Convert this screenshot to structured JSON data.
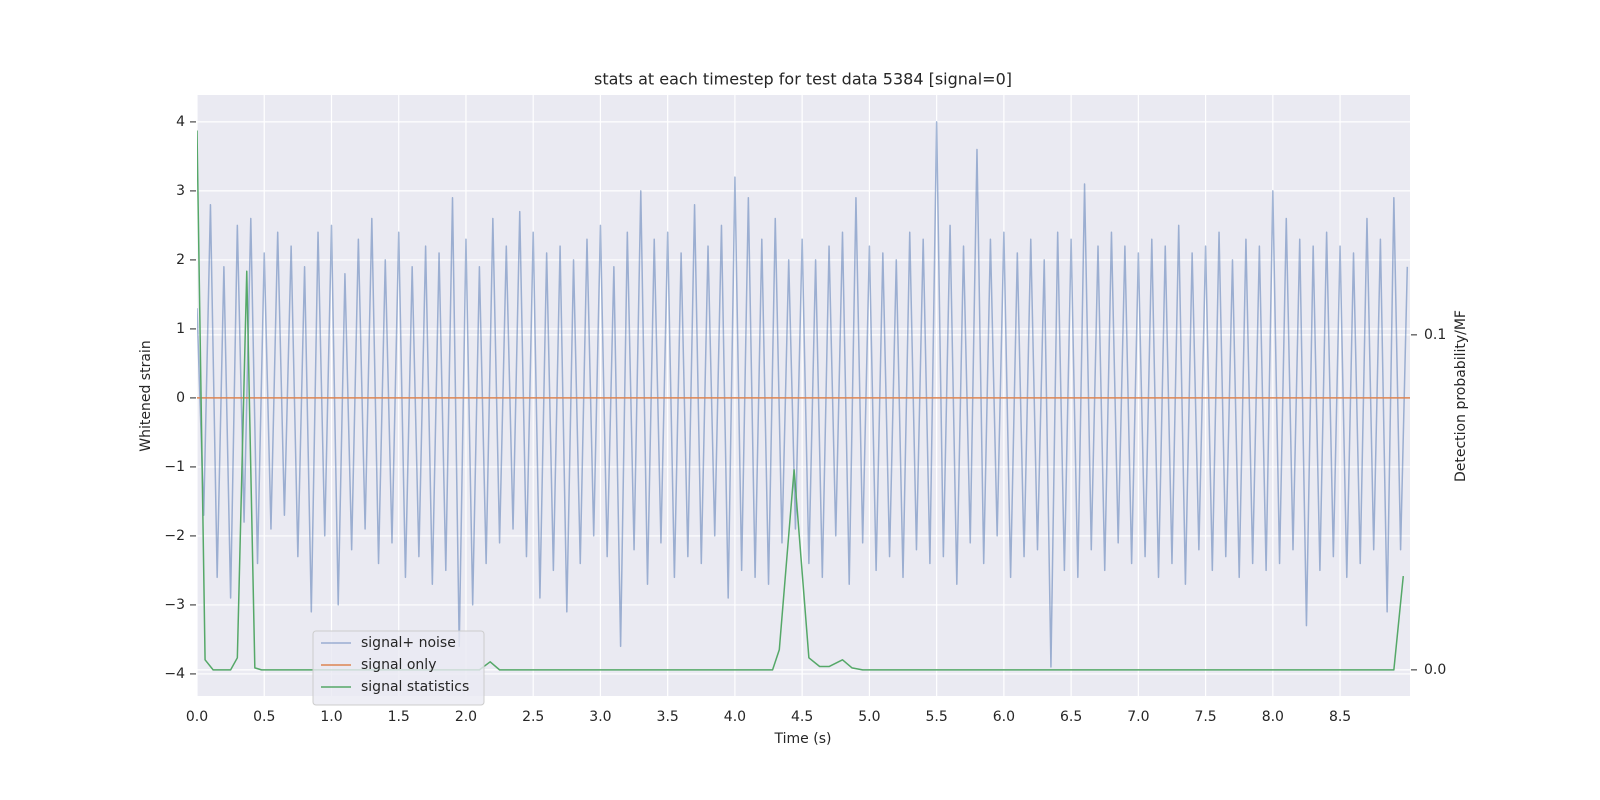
{
  "chart_data": {
    "type": "line",
    "title": "stats at each timestep for test data 5384 [signal=0]",
    "xlabel": "Time (s)",
    "ylabel": "Whitened strain",
    "y2label": "Detection probability/MF",
    "xlim": [
      0,
      9.02
    ],
    "ylim": [
      -4.32,
      4.39
    ],
    "y2lim": [
      -0.0078,
      0.1716
    ],
    "xticks": [
      {
        "value": 0,
        "label": "0.0"
      },
      {
        "value": 0.5,
        "label": "0.5"
      },
      {
        "value": 1,
        "label": "1.0"
      },
      {
        "value": 1.5,
        "label": "1.5"
      },
      {
        "value": 2,
        "label": "2.0"
      },
      {
        "value": 2.5,
        "label": "2.5"
      },
      {
        "value": 3,
        "label": "3.0"
      },
      {
        "value": 3.5,
        "label": "3.5"
      },
      {
        "value": 4,
        "label": "4.0"
      },
      {
        "value": 4.5,
        "label": "4.5"
      },
      {
        "value": 5,
        "label": "5.0"
      },
      {
        "value": 5.5,
        "label": "5.5"
      },
      {
        "value": 6,
        "label": "6.0"
      },
      {
        "value": 6.5,
        "label": "6.5"
      },
      {
        "value": 7,
        "label": "7.0"
      },
      {
        "value": 7.5,
        "label": "7.5"
      },
      {
        "value": 8,
        "label": "8.0"
      },
      {
        "value": 8.5,
        "label": "8.5"
      }
    ],
    "yticks": [
      4,
      3,
      2,
      1,
      0,
      {
        "value": -1,
        "label": "−1"
      },
      {
        "value": -2,
        "label": "−2"
      },
      {
        "value": -3,
        "label": "−3"
      },
      {
        "value": -4,
        "label": "−4"
      }
    ],
    "y2ticks": [
      {
        "value": 0,
        "label": "0.0"
      },
      0.1
    ],
    "grid": true,
    "legend": "lower left",
    "series": [
      {
        "name": "signal+ noise",
        "color": "#4c72b0",
        "opacity": 0.5,
        "x": [
          0,
          0.05,
          0.1,
          0.15,
          0.2,
          0.25,
          0.3,
          0.35,
          0.4,
          0.45,
          0.5,
          0.55,
          0.6,
          0.65,
          0.7,
          0.75,
          0.8,
          0.85,
          0.9,
          0.95,
          1,
          1.05,
          1.1,
          1.15,
          1.2,
          1.25,
          1.3,
          1.35,
          1.4,
          1.45,
          1.5,
          1.55,
          1.6,
          1.65,
          1.7,
          1.75,
          1.8,
          1.85,
          1.9,
          1.95,
          2,
          2.05,
          2.1,
          2.15,
          2.2,
          2.25,
          2.3,
          2.35,
          2.4,
          2.45,
          2.5,
          2.55,
          2.6,
          2.65,
          2.7,
          2.75,
          2.8,
          2.85,
          2.9,
          2.95,
          3,
          3.05,
          3.1,
          3.15,
          3.2,
          3.25,
          3.3,
          3.35,
          3.4,
          3.45,
          3.5,
          3.55,
          3.6,
          3.65,
          3.7,
          3.75,
          3.8,
          3.85,
          3.9,
          3.95,
          4,
          4.05,
          4.1,
          4.15,
          4.2,
          4.25,
          4.3,
          4.35,
          4.4,
          4.45,
          4.5,
          4.55,
          4.6,
          4.65,
          4.7,
          4.75,
          4.8,
          4.85,
          4.9,
          4.95,
          5,
          5.05,
          5.1,
          5.15,
          5.2,
          5.25,
          5.3,
          5.35,
          5.4,
          5.45,
          5.5,
          5.55,
          5.6,
          5.65,
          5.7,
          5.75,
          5.8,
          5.85,
          5.9,
          5.95,
          6,
          6.05,
          6.1,
          6.15,
          6.2,
          6.25,
          6.3,
          6.35,
          6.4,
          6.45,
          6.5,
          6.55,
          6.6,
          6.65,
          6.7,
          6.75,
          6.8,
          6.85,
          6.9,
          6.95,
          7,
          7.05,
          7.1,
          7.15,
          7.2,
          7.25,
          7.3,
          7.35,
          7.4,
          7.45,
          7.5,
          7.55,
          7.6,
          7.65,
          7.7,
          7.75,
          7.8,
          7.85,
          7.9,
          7.95,
          8,
          8.05,
          8.1,
          8.15,
          8.2,
          8.25,
          8.3,
          8.35,
          8.4,
          8.45,
          8.5,
          8.55,
          8.6,
          8.65,
          8.7,
          8.75,
          8.8,
          8.85,
          8.9,
          8.95,
          9
        ],
        "values": [
          1.3,
          -1.7,
          2.8,
          -2.6,
          1.9,
          -2.9,
          2.5,
          -1.8,
          2.6,
          -2.4,
          2.1,
          -1.9,
          2.4,
          -1.7,
          2.2,
          -2.3,
          1.9,
          -3.1,
          2.4,
          -2.0,
          2.5,
          -3.0,
          1.8,
          -2.2,
          2.3,
          -1.9,
          2.6,
          -2.4,
          2.0,
          -2.1,
          2.4,
          -2.6,
          1.9,
          -2.3,
          2.2,
          -2.7,
          2.1,
          -2.5,
          2.9,
          -3.6,
          2.3,
          -3.0,
          1.9,
          -2.4,
          2.6,
          -2.1,
          2.2,
          -1.9,
          2.7,
          -2.3,
          2.4,
          -2.9,
          2.1,
          -2.5,
          2.2,
          -3.1,
          2.0,
          -2.4,
          2.3,
          -2.0,
          2.5,
          -2.3,
          1.9,
          -3.6,
          2.4,
          -2.2,
          3.0,
          -2.7,
          2.3,
          -2.1,
          2.4,
          -2.6,
          2.1,
          -2.3,
          2.8,
          -2.4,
          2.2,
          -2.0,
          2.5,
          -2.9,
          3.2,
          -2.5,
          2.9,
          -2.6,
          2.3,
          -2.7,
          2.6,
          -2.1,
          2.0,
          -1.9,
          2.3,
          -2.4,
          2.0,
          -2.6,
          2.2,
          -2.0,
          2.4,
          -2.7,
          2.9,
          -2.1,
          2.2,
          -2.5,
          2.1,
          -2.3,
          2.0,
          -2.6,
          2.4,
          -2.2,
          2.3,
          -2.4,
          4.0,
          -2.3,
          2.5,
          -2.7,
          2.2,
          -2.1,
          3.6,
          -2.4,
          2.3,
          -2.0,
          2.4,
          -2.6,
          2.1,
          -2.3,
          2.3,
          -2.2,
          2.0,
          -3.9,
          2.4,
          -2.5,
          2.3,
          -2.6,
          3.1,
          -2.2,
          2.2,
          -2.5,
          2.4,
          -2.1,
          2.2,
          -2.4,
          2.1,
          -2.3,
          2.3,
          -2.6,
          2.2,
          -2.4,
          2.5,
          -2.7,
          2.1,
          -2.2,
          2.2,
          -2.5,
          2.4,
          -2.3,
          2.0,
          -2.6,
          2.3,
          -2.4,
          2.2,
          -2.5,
          3.0,
          -2.4,
          2.6,
          -2.2,
          2.3,
          -3.3,
          2.2,
          -2.5,
          2.4,
          -2.3,
          2.2,
          -2.6,
          2.1,
          -2.4,
          2.6,
          -2.2,
          2.3,
          -3.1,
          2.9,
          -2.2,
          1.9
        ]
      },
      {
        "name": "signal only",
        "color": "#dd8452",
        "x": [
          0,
          9.02
        ],
        "values": [
          0,
          0
        ]
      },
      {
        "name": "signal statistics",
        "color": "#55a868",
        "axis": "y2",
        "x": [
          0,
          0.06,
          0.12,
          0.25,
          0.3,
          0.37,
          0.43,
          0.48,
          2.1,
          2.18,
          2.25,
          4.28,
          4.33,
          4.44,
          4.55,
          4.63,
          4.7,
          4.8,
          4.87,
          4.95,
          8.9,
          8.97
        ],
        "values": [
          0.161,
          0.003,
          0,
          0,
          0.0036,
          0.119,
          0.0006,
          0,
          0,
          0.0024,
          0,
          0,
          0.006,
          0.0597,
          0.0036,
          0.001,
          0.001,
          0.003,
          0.0006,
          0,
          0,
          0.028
        ]
      }
    ]
  }
}
